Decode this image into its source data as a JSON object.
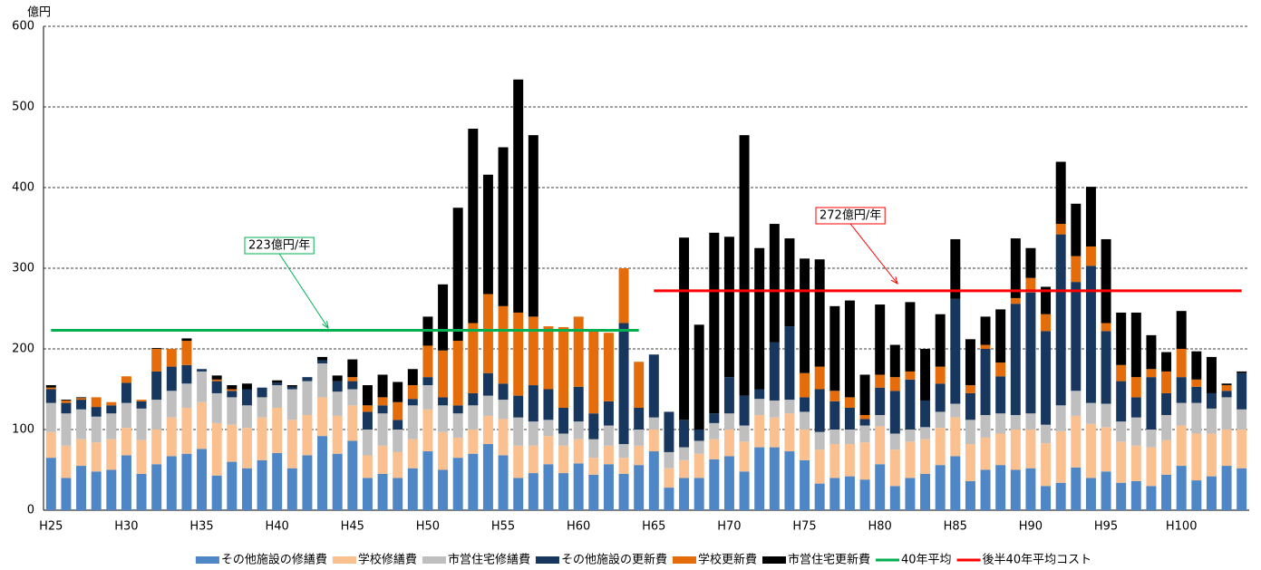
{
  "chart_data": {
    "type": "bar",
    "stacked": true,
    "y_label": "億円",
    "categories": [
      "H25",
      null,
      null,
      null,
      null,
      "H30",
      null,
      null,
      null,
      null,
      "H35",
      null,
      null,
      null,
      null,
      "H40",
      null,
      null,
      null,
      null,
      "H45",
      null,
      null,
      null,
      null,
      "H50",
      null,
      null,
      null,
      null,
      "H55",
      null,
      null,
      null,
      null,
      "H60",
      null,
      null,
      null,
      null,
      "H65",
      null,
      null,
      null,
      null,
      "H70",
      null,
      null,
      null,
      null,
      "H75",
      null,
      null,
      null,
      null,
      "H80",
      null,
      null,
      null,
      null,
      "H85",
      null,
      null,
      null,
      null,
      "H90",
      null,
      null,
      null,
      null,
      "H95",
      null,
      null,
      null,
      null,
      "H100",
      null,
      null,
      null,
      null
    ],
    "ylim": [
      0,
      600
    ],
    "yticks": [
      0,
      100,
      200,
      300,
      400,
      500,
      600
    ],
    "grid": true,
    "series": [
      {
        "name": "その他施設の修繕費",
        "color": "#4f86c6",
        "values": [
          65,
          40,
          55,
          48,
          50,
          68,
          45,
          57,
          67,
          70,
          76,
          43,
          60,
          52,
          62,
          71,
          52,
          68,
          92,
          70,
          86,
          40,
          45,
          40,
          52,
          73,
          50,
          65,
          70,
          82,
          68,
          40,
          46,
          57,
          46,
          58,
          44,
          57,
          45,
          56,
          73,
          28,
          40,
          40,
          63,
          67,
          48,
          78,
          78,
          73,
          62,
          33,
          40,
          42,
          38,
          57,
          30,
          40,
          45,
          56,
          67,
          36,
          50,
          56,
          50,
          52,
          30,
          34,
          53,
          40,
          48,
          34,
          36,
          30,
          44,
          55,
          37,
          42,
          55,
          52
        ]
      },
      {
        "name": "学校修繕費",
        "color": "#fac090",
        "values": [
          32,
          40,
          33,
          36,
          38,
          34,
          42,
          43,
          48,
          57,
          58,
          65,
          46,
          50,
          53,
          56,
          60,
          50,
          48,
          47,
          44,
          28,
          35,
          32,
          36,
          52,
          47,
          25,
          30,
          35,
          45,
          40,
          34,
          35,
          34,
          30,
          21,
          23,
          20,
          24,
          27,
          24,
          22,
          30,
          25,
          33,
          37,
          40,
          37,
          47,
          38,
          42,
          42,
          40,
          46,
          47,
          45,
          45,
          43,
          46,
          48,
          46,
          40,
          39,
          50,
          48,
          53,
          64,
          64,
          67,
          55,
          51,
          44,
          48,
          43,
          50,
          58,
          53,
          45,
          48
        ]
      },
      {
        "name": "市営住宅修繕費",
        "color": "#bfbfbf",
        "values": [
          36,
          40,
          37,
          32,
          32,
          31,
          39,
          37,
          33,
          30,
          38,
          37,
          34,
          28,
          25,
          28,
          38,
          42,
          42,
          30,
          20,
          32,
          40,
          28,
          42,
          30,
          33,
          30,
          30,
          25,
          24,
          35,
          30,
          20,
          15,
          22,
          23,
          25,
          17,
          20,
          15,
          20,
          16,
          16,
          20,
          20,
          20,
          20,
          21,
          17,
          22,
          22,
          18,
          18,
          21,
          14,
          20,
          15,
          15,
          20,
          17,
          30,
          28,
          25,
          18,
          20,
          23,
          32,
          31,
          26,
          29,
          25,
          35,
          22,
          31,
          28,
          38,
          31,
          40,
          25
        ]
      },
      {
        "name": "その他施設の更新費",
        "color": "#17375e",
        "values": [
          17,
          13,
          12,
          12,
          10,
          25,
          9,
          35,
          30,
          23,
          3,
          15,
          8,
          20,
          12,
          3,
          3,
          5,
          4,
          13,
          10,
          22,
          10,
          12,
          8,
          10,
          10,
          10,
          15,
          28,
          20,
          27,
          45,
          38,
          32,
          43,
          32,
          30,
          150,
          27,
          78,
          50,
          34,
          14,
          12,
          45,
          37,
          12,
          72,
          91,
          18,
          53,
          35,
          27,
          8,
          34,
          53,
          62,
          33,
          35,
          130,
          33,
          82,
          46,
          138,
          150,
          116,
          212,
          135,
          170,
          90,
          50,
          25,
          65,
          27,
          32,
          20,
          19,
          8,
          45
        ]
      },
      {
        "name": "学校更新費",
        "color": "#e46c0a",
        "values": [
          2,
          3,
          2,
          12,
          4,
          8,
          2,
          28,
          22,
          30,
          0,
          2,
          2,
          0,
          0,
          0,
          0,
          0,
          0,
          0,
          5,
          8,
          10,
          22,
          17,
          39,
          58,
          80,
          87,
          98,
          96,
          103,
          85,
          78,
          100,
          87,
          104,
          85,
          68,
          57,
          0,
          0,
          0,
          0,
          0,
          0,
          0,
          0,
          0,
          0,
          30,
          28,
          13,
          13,
          5,
          16,
          17,
          10,
          0,
          21,
          0,
          10,
          5,
          17,
          7,
          18,
          21,
          13,
          32,
          24,
          10,
          20,
          25,
          10,
          27,
          35,
          9,
          0,
          7,
          0
        ]
      },
      {
        "name": "市営住宅更新費",
        "color": "#000000",
        "values": [
          3,
          1,
          1,
          0,
          0,
          0,
          0,
          1,
          0,
          3,
          0,
          5,
          5,
          7,
          0,
          3,
          2,
          0,
          4,
          7,
          22,
          25,
          28,
          25,
          20,
          36,
          82,
          165,
          241,
          148,
          197,
          289,
          225,
          0,
          0,
          0,
          0,
          0,
          0,
          0,
          0,
          0,
          226,
          130,
          224,
          174,
          323,
          175,
          147,
          109,
          142,
          133,
          105,
          120,
          50,
          87,
          40,
          86,
          64,
          65,
          74,
          57,
          35,
          66,
          74,
          37,
          34,
          77,
          65,
          74,
          104,
          65,
          80,
          42,
          24,
          47,
          35,
          45,
          2,
          2
        ]
      },
      {
        "name": "40年平均",
        "type": "line",
        "color": "#00b050",
        "values": [
          223,
          223,
          223,
          223,
          223,
          223,
          223,
          223,
          223,
          223,
          223,
          223,
          223,
          223,
          223,
          223,
          223,
          223,
          223,
          223,
          223,
          223,
          223,
          223,
          223,
          223,
          223,
          223,
          223,
          223,
          223,
          223,
          223,
          223,
          223,
          223,
          223,
          223,
          223,
          223,
          null,
          null,
          null,
          null,
          null,
          null,
          null,
          null,
          null,
          null,
          null,
          null,
          null,
          null,
          null,
          null,
          null,
          null,
          null,
          null,
          null,
          null,
          null,
          null,
          null,
          null,
          null,
          null,
          null,
          null,
          null,
          null,
          null,
          null,
          null,
          null,
          null,
          null,
          null,
          null
        ]
      },
      {
        "name": "後半40年平均コスト",
        "type": "line",
        "color": "#ff0000",
        "values": [
          null,
          null,
          null,
          null,
          null,
          null,
          null,
          null,
          null,
          null,
          null,
          null,
          null,
          null,
          null,
          null,
          null,
          null,
          null,
          null,
          null,
          null,
          null,
          null,
          null,
          null,
          null,
          null,
          null,
          null,
          null,
          null,
          null,
          null,
          null,
          null,
          null,
          null,
          null,
          null,
          272,
          272,
          272,
          272,
          272,
          272,
          272,
          272,
          272,
          272,
          272,
          272,
          272,
          272,
          272,
          272,
          272,
          272,
          272,
          272,
          272,
          272,
          272,
          272,
          272,
          272,
          272,
          272,
          272,
          272,
          272,
          272,
          272,
          272,
          272,
          272,
          272,
          272,
          272,
          272
        ]
      }
    ],
    "annotations": [
      {
        "text": "223億円/年",
        "color": "#00b050"
      },
      {
        "text": "272億円/年",
        "color": "#ff0000"
      }
    ],
    "legend": "bottom"
  }
}
